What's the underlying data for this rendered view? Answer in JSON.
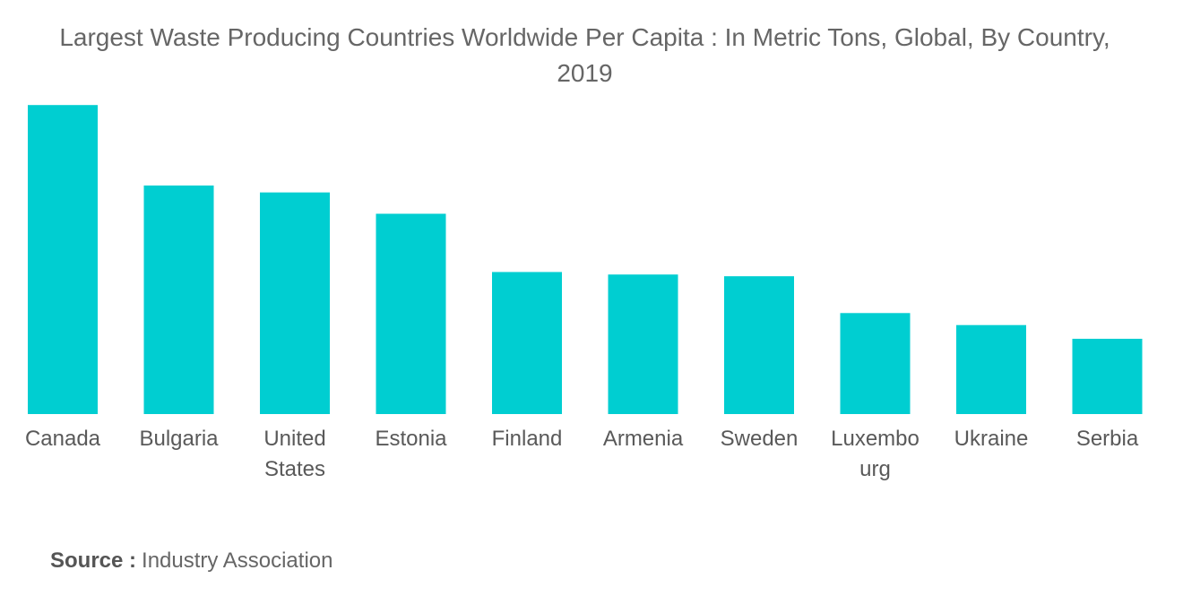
{
  "chart_data": {
    "type": "bar",
    "title": "Largest Waste Producing Countries Worldwide Per Capita : In Metric Tons, Global, By Country, 2019",
    "categories": [
      "Canada",
      "Bulgaria",
      "United States",
      "Estonia",
      "Finland",
      "Armenia",
      "Sweden",
      "Luxembourg",
      "Ukraine",
      "Serbia"
    ],
    "category_labels": [
      [
        "Canada"
      ],
      [
        "Bulgaria"
      ],
      [
        "United",
        "States"
      ],
      [
        "Estonia"
      ],
      [
        "Finland"
      ],
      [
        "Armenia"
      ],
      [
        "Sweden"
      ],
      [
        "Luxembo",
        "urg"
      ],
      [
        "Ukraine"
      ],
      [
        "Serbia"
      ]
    ],
    "values": [
      36.1,
      26.7,
      25.9,
      23.4,
      16.6,
      16.3,
      16.1,
      11.8,
      10.4,
      8.8
    ],
    "ylim": [
      0,
      40
    ],
    "xlabel": "",
    "ylabel": "",
    "grid": false,
    "bar_color": "#00CED1"
  },
  "source": {
    "label": "Source :",
    "value": "Industry Association"
  }
}
